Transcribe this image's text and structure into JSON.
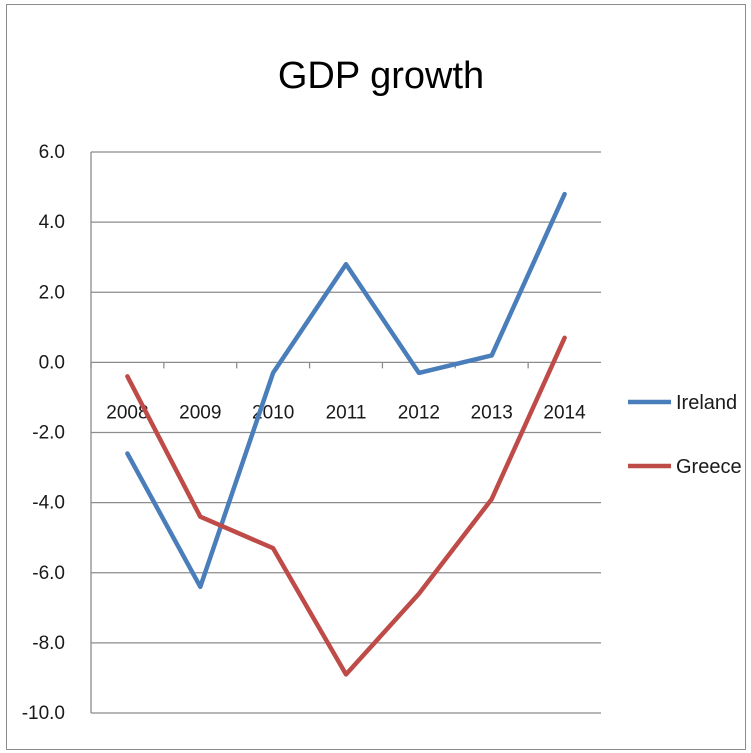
{
  "chart_data": {
    "type": "line",
    "title": "GDP growth",
    "xlabel": "",
    "ylabel": "",
    "categories": [
      "2008",
      "2009",
      "2010",
      "2011",
      "2012",
      "2013",
      "2014"
    ],
    "yticks": [
      "6.0",
      "4.0",
      "2.0",
      "0.0",
      "-2.0",
      "-4.0",
      "-6.0",
      "-8.0",
      "-10.0"
    ],
    "ylim": [
      -10,
      6
    ],
    "ystep": 2,
    "grid": true,
    "legend_position": "right",
    "series": [
      {
        "name": "Ireland",
        "color": "#4a7ebb",
        "values": [
          -2.6,
          -6.4,
          -0.3,
          2.8,
          -0.3,
          0.2,
          4.8
        ]
      },
      {
        "name": "Greece",
        "color": "#be4b48",
        "values": [
          -0.4,
          -4.4,
          -5.3,
          -8.9,
          -6.6,
          -3.9,
          0.7
        ]
      }
    ]
  }
}
